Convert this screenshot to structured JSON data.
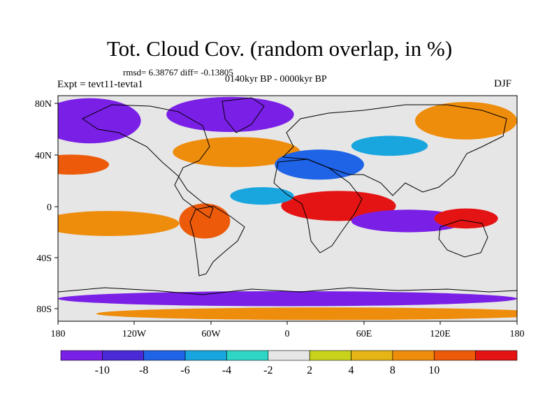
{
  "title": "Tot. Cloud Cov. (random overlap, in %)",
  "stats": {
    "text": "rmsd= 6.38767 diff= -0.13805"
  },
  "period": "0140kyr BP - 0000kyr BP",
  "experiment": "Expt = tevt11-tevta1",
  "season": "DJF",
  "lat_labels": [
    "80N",
    "40N",
    "0",
    "40S",
    "80S"
  ],
  "lon_labels": [
    "180",
    "120W",
    "60W",
    "0",
    "60E",
    "120E",
    "180"
  ],
  "colorbar": {
    "colors": [
      "#7a1fe6",
      "#4a2ad6",
      "#1f63e6",
      "#19a6df",
      "#2fd6c6",
      "#e6e6e6",
      "#c8d21a",
      "#e6b414",
      "#ee8c0c",
      "#ec5a0a",
      "#e41414"
    ],
    "labels": [
      "-10",
      "-8",
      "-6",
      "-4",
      "-2",
      "2",
      "4",
      "8",
      "10"
    ]
  },
  "map": {
    "background_color": "#e6e6e6",
    "regions": [
      {
        "name": "arctic-west",
        "color": "#7a1fe6",
        "lon": -155,
        "lat": 70,
        "w": 40,
        "h": 18
      },
      {
        "name": "arctic-greenland",
        "color": "#7a1fe6",
        "lon": -45,
        "lat": 75,
        "w": 50,
        "h": 14
      },
      {
        "name": "north-atlantic-orange",
        "color": "#ee8c0c",
        "lon": -40,
        "lat": 45,
        "w": 50,
        "h": 12
      },
      {
        "name": "north-pacific-red",
        "color": "#ec5a0a",
        "lon": -170,
        "lat": 35,
        "w": 30,
        "h": 8
      },
      {
        "name": "europe-blue",
        "color": "#1f63e6",
        "lon": 25,
        "lat": 35,
        "w": 35,
        "h": 12
      },
      {
        "name": "sahara-red",
        "color": "#e41414",
        "lon": 40,
        "lat": 2,
        "w": 45,
        "h": 12
      },
      {
        "name": "indian-ocean-purple",
        "color": "#7a1fe6",
        "lon": 95,
        "lat": -10,
        "w": 45,
        "h": 9
      },
      {
        "name": "maritime-red",
        "color": "#e41414",
        "lon": 140,
        "lat": -8,
        "w": 25,
        "h": 8
      },
      {
        "name": "south-pacific-orange",
        "color": "#ee8c0c",
        "lon": -140,
        "lat": -12,
        "w": 55,
        "h": 10
      },
      {
        "name": "south-america-red",
        "color": "#ec5a0a",
        "lon": -65,
        "lat": -10,
        "w": 20,
        "h": 14
      },
      {
        "name": "southern-ocean-purple",
        "color": "#7a1fe6",
        "lon": 0,
        "lat": -72,
        "w": 180,
        "h": 6
      },
      {
        "name": "southern-ocean-orange",
        "color": "#ee8c0c",
        "lon": 30,
        "lat": -84,
        "w": 180,
        "h": 5
      },
      {
        "name": "northeast-asia-orange",
        "color": "#ee8c0c",
        "lon": 140,
        "lat": 70,
        "w": 40,
        "h": 15
      },
      {
        "name": "central-asia-blue",
        "color": "#19a6df",
        "lon": 80,
        "lat": 50,
        "w": 30,
        "h": 8
      },
      {
        "name": "tropical-atlantic-cyan",
        "color": "#19a6df",
        "lon": -20,
        "lat": 10,
        "w": 25,
        "h": 7
      }
    ]
  }
}
